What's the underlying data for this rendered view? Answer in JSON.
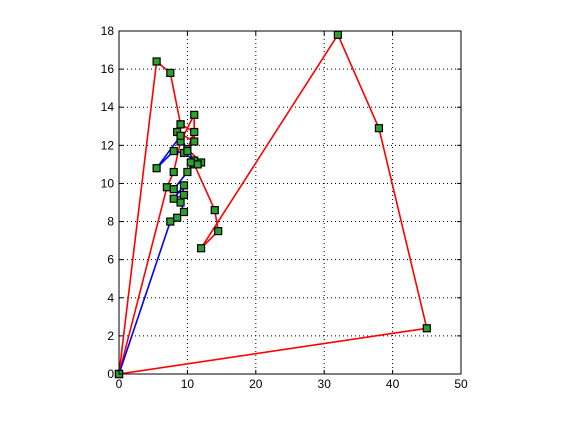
{
  "chart_data": {
    "type": "line",
    "title": "",
    "xlabel": "",
    "ylabel": "",
    "xlim": [
      0,
      50
    ],
    "ylim": [
      0,
      18
    ],
    "xticks": [
      0,
      10,
      20,
      30,
      40,
      50
    ],
    "yticks": [
      0,
      2,
      4,
      6,
      8,
      10,
      12,
      14,
      16,
      18
    ],
    "grid": true,
    "grid_style": "dotted",
    "legend": "none",
    "marker": {
      "shape": "square",
      "face_color": "#2ca02c",
      "edge_color": "#000000"
    },
    "series": [
      {
        "color": "#ff0000",
        "x": [
          0,
          45,
          38,
          32,
          12,
          14.5,
          14,
          11,
          12,
          10,
          11,
          9,
          7.5,
          5.5,
          0
        ],
        "y": [
          0,
          2.4,
          12.9,
          17.8,
          6.6,
          7.5,
          8.6,
          11,
          11.1,
          11.8,
          12.7,
          13.1,
          15.8,
          16.4,
          0
        ]
      },
      {
        "color": "#ff0000",
        "x": [
          0,
          7,
          8,
          9,
          11,
          11,
          8.5,
          9
        ],
        "y": [
          0,
          9.8,
          10.6,
          12.2,
          13.6,
          12.2,
          12.7,
          13.1
        ]
      },
      {
        "color": "#0000ff",
        "x": [
          0,
          7.5,
          8.5,
          9.5,
          9,
          9.5,
          8,
          9.5,
          8,
          10,
          11,
          9.5,
          8,
          5.5,
          9,
          10,
          11.5,
          10.5
        ],
        "y": [
          0,
          8,
          8.2,
          8.5,
          9,
          9.9,
          9.2,
          9.4,
          9.7,
          10.6,
          11.2,
          11.6,
          11.7,
          10.8,
          12.5,
          11.7,
          11,
          11.1
        ]
      }
    ]
  }
}
